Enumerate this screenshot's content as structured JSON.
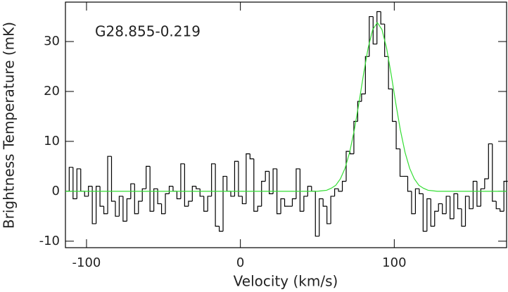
{
  "chart_data": {
    "type": "line",
    "annotation": "G28.855-0.219",
    "xlabel": "Velocity (km/s)",
    "ylabel": "Brightness Temperature (mK)",
    "xlim": [
      -113.7,
      173
    ],
    "ylim": [
      -11.3,
      37.9
    ],
    "xticks": [
      -100,
      0,
      100
    ],
    "yticks": [
      -10,
      0,
      10,
      20,
      30
    ],
    "series": [
      {
        "style": "step",
        "color": "#000000",
        "x": [
          -112.5,
          -110,
          -107.5,
          -105,
          -102.5,
          -100,
          -97.5,
          -95,
          -92.5,
          -90,
          -87.5,
          -85,
          -82.5,
          -80,
          -77.5,
          -75,
          -72.5,
          -70,
          -67.5,
          -65,
          -62.5,
          -60,
          -57.5,
          -55,
          -52.5,
          -50,
          -47.5,
          -45,
          -42.5,
          -40,
          -37.5,
          -35,
          -32.5,
          -30,
          -27.5,
          -25,
          -22.5,
          -20,
          -17.5,
          -15,
          -12.5,
          -10,
          -7.5,
          -5,
          -2.5,
          0,
          2.5,
          5,
          7.5,
          10,
          12.5,
          15,
          17.5,
          20,
          22.5,
          25,
          27.5,
          30,
          32.5,
          35,
          37.5,
          40,
          42.5,
          45,
          47.5,
          50,
          52.5,
          55,
          57.5,
          60,
          62.5,
          65,
          67.5,
          70,
          72.5,
          75,
          77.5,
          80,
          82.5,
          85,
          87.5,
          90,
          92.5,
          95,
          97.5,
          100,
          102.5,
          105,
          107.5,
          110,
          112.5,
          115,
          117.5,
          120,
          122.5,
          125,
          127.5,
          130,
          132.5,
          135,
          137.5,
          140,
          142.5,
          145,
          147.5,
          150,
          152.5,
          155,
          157.5,
          160,
          162.5,
          165,
          167.5,
          170,
          172.5
        ],
        "values": [
          0,
          4.8,
          -1.5,
          4.5,
          0,
          -1,
          1,
          -6.5,
          1,
          -3,
          -4.5,
          7,
          -2,
          -5,
          -1,
          -6,
          -1.5,
          1.5,
          -4.5,
          -2,
          0.5,
          5,
          -4,
          0.5,
          -2.5,
          -4.5,
          -0.5,
          1,
          0,
          -1.5,
          5.5,
          -3,
          -2,
          1,
          0.5,
          -1,
          -4,
          -1,
          5.5,
          -7,
          -8,
          3,
          0,
          -1,
          6,
          -1,
          -2.5,
          7.5,
          6.5,
          -4,
          -3,
          2,
          4,
          -0.5,
          4.5,
          -4.5,
          -1.5,
          -3,
          -3,
          -1.5,
          4.5,
          -4,
          -1,
          1,
          0,
          -9,
          -1.5,
          -3,
          -6.5,
          -1,
          0.5,
          0,
          2,
          8,
          7.5,
          14,
          18,
          19.5,
          27,
          35,
          29.5,
          36,
          33.5,
          27,
          20.5,
          14,
          8.5,
          3,
          3,
          0,
          -4.5,
          0.5,
          -0.5,
          -8,
          -1.5,
          -7,
          -4,
          -2.5,
          -4.5,
          -1,
          -5.5,
          -0.5,
          -3.5,
          -7,
          -1,
          -3.5,
          2,
          -3,
          0.5,
          2.5,
          9.5,
          -2,
          -3.5,
          -4,
          2
        ]
      },
      {
        "style": "line",
        "color": "#33dd33",
        "x": [
          -113.7,
          50,
          53,
          56,
          59,
          62,
          65,
          68,
          71,
          74,
          77,
          80,
          83,
          86,
          89,
          92,
          95,
          98,
          101,
          104,
          107,
          110,
          113,
          116,
          119,
          122,
          125,
          128,
          173
        ],
        "values": [
          0,
          0,
          0.1,
          0.2,
          0.6,
          1.2,
          2.5,
          4.6,
          7.8,
          12.2,
          17.6,
          23.4,
          28.7,
          32.4,
          33.8,
          32.4,
          28.7,
          23.4,
          17.6,
          12.2,
          7.8,
          4.6,
          2.5,
          1.2,
          0.6,
          0.2,
          0.1,
          0,
          0
        ]
      }
    ]
  }
}
